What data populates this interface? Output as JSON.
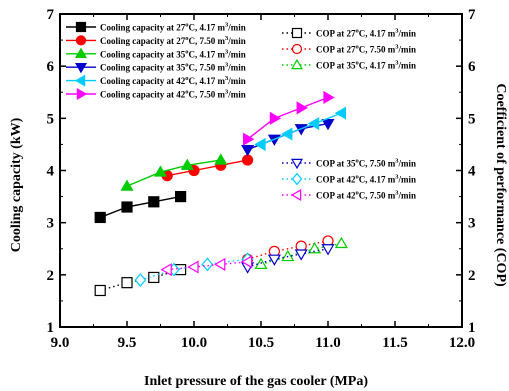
{
  "chart_data": {
    "type": "line",
    "xlabel": "Inlet pressure of the gas cooler (MPa)",
    "ylabel_left": "Cooling capacity (kW)",
    "ylabel_right": "Coefficient of performance (COP)",
    "xlim": [
      9.0,
      12.0
    ],
    "ylim": [
      1,
      7
    ],
    "xticks": [
      "9.0",
      "9.5",
      "10.0",
      "10.5",
      "11.0",
      "11.5",
      "12.0"
    ],
    "yticks": [
      "1",
      "2",
      "3",
      "4",
      "5",
      "6",
      "7"
    ],
    "grid": false,
    "series": [
      {
        "name": "Cooling capacity at 27°C, 4.17 m³/min",
        "axis": "capacity",
        "style": "solid",
        "marker": "square",
        "color": "#000000",
        "x": [
          9.3,
          9.5,
          9.7,
          9.9
        ],
        "y": [
          3.1,
          3.3,
          3.4,
          3.5
        ]
      },
      {
        "name": "Cooling capacity at 27°C, 7.50 m³/min",
        "axis": "capacity",
        "style": "solid",
        "marker": "circle",
        "color": "#ff0000",
        "x": [
          9.8,
          10.0,
          10.2,
          10.4
        ],
        "y": [
          3.9,
          4.0,
          4.1,
          4.2
        ]
      },
      {
        "name": "Cooling capacity at 35°C, 4.17 m³/min",
        "axis": "capacity",
        "style": "solid",
        "marker": "triangle-up",
        "color": "#00cc00",
        "x": [
          9.5,
          9.75,
          9.95,
          10.2
        ],
        "y": [
          3.7,
          3.97,
          4.1,
          4.2
        ]
      },
      {
        "name": "Cooling capacity at 35°C, 7.50 m³/min",
        "axis": "capacity",
        "style": "solid",
        "marker": "triangle-down",
        "color": "#0000cc",
        "x": [
          10.4,
          10.6,
          10.8,
          11.0
        ],
        "y": [
          4.4,
          4.6,
          4.8,
          4.9
        ]
      },
      {
        "name": "Cooling capacity at 42°C, 4.17 m³/min",
        "axis": "capacity",
        "style": "solid",
        "marker": "triangle-left",
        "color": "#00ccff",
        "x": [
          10.5,
          10.7,
          10.9,
          11.1
        ],
        "y": [
          4.5,
          4.7,
          4.9,
          5.1
        ]
      },
      {
        "name": "Cooling capacity at 42°C, 7.50 m³/min",
        "axis": "capacity",
        "style": "solid",
        "marker": "triangle-right",
        "color": "#ff00ff",
        "x": [
          10.4,
          10.6,
          10.8,
          11.0
        ],
        "y": [
          4.6,
          5.0,
          5.2,
          5.4
        ]
      },
      {
        "name": "COP at 27°C, 4.17 m³/min",
        "axis": "cop",
        "style": "dotted",
        "marker": "square-open",
        "color": "#000000",
        "x": [
          9.3,
          9.5,
          9.7,
          9.9
        ],
        "y": [
          1.7,
          1.85,
          1.95,
          2.1
        ]
      },
      {
        "name": "COP at 27°C, 7.50 m³/min",
        "axis": "cop",
        "style": "dotted",
        "marker": "circle-open",
        "color": "#ff0000",
        "x": [
          10.4,
          10.6,
          10.8,
          11.0
        ],
        "y": [
          2.3,
          2.45,
          2.55,
          2.65
        ]
      },
      {
        "name": "COP at 35°C, 4.17 m³/min",
        "axis": "cop",
        "style": "dotted",
        "marker": "triangle-up-open",
        "color": "#00cc00",
        "x": [
          10.5,
          10.7,
          10.9,
          11.1
        ],
        "y": [
          2.2,
          2.35,
          2.5,
          2.6
        ]
      },
      {
        "name": "COP at 35°C, 7.50 m³/min",
        "axis": "cop",
        "style": "dotted",
        "marker": "triangle-down-open",
        "color": "#0000cc",
        "x": [
          10.4,
          10.6,
          10.8,
          11.0
        ],
        "y": [
          2.15,
          2.3,
          2.4,
          2.5
        ]
      },
      {
        "name": "COP at 42°C, 4.17 m³/min",
        "axis": "cop",
        "style": "dotted",
        "marker": "diamond-open",
        "color": "#00ccff",
        "x": [
          9.6,
          9.85,
          10.1,
          10.4
        ],
        "y": [
          1.9,
          2.1,
          2.2,
          2.3
        ]
      },
      {
        "name": "COP at 42°C, 7.50 m³/min",
        "axis": "cop",
        "style": "dotted",
        "marker": "triangle-left-open",
        "color": "#ff00ff",
        "x": [
          9.8,
          10.0,
          10.2,
          10.4
        ],
        "y": [
          2.1,
          2.15,
          2.2,
          2.25
        ]
      }
    ],
    "legends": [
      {
        "position": "top-left",
        "lines": [
          {
            "series": 0,
            "parts": [
              "Cooling capacity at 27",
              "o",
              "C, 4.17 m",
              "3",
              "/min"
            ]
          },
          {
            "series": 1,
            "parts": [
              "Cooling capacity at 27",
              "o",
              "C, 7.50 m",
              "3",
              "/min"
            ]
          },
          {
            "series": 2,
            "parts": [
              "Cooling capacity at 35",
              "o",
              "C, 4.17 m",
              "3",
              "/min"
            ]
          },
          {
            "series": 3,
            "parts": [
              "Cooling capacity at 35",
              "o",
              "C, 7.50 m",
              "3",
              "/min"
            ]
          },
          {
            "series": 4,
            "parts": [
              "Cooling capacity at 42",
              "o",
              "C, 4.17 m",
              "3",
              "/min"
            ]
          },
          {
            "series": 5,
            "parts": [
              "Cooling capacity at 42",
              "o",
              "C, 7.50 m",
              "3",
              "/min"
            ]
          }
        ]
      },
      {
        "position": "top-right",
        "lines": [
          {
            "series": 6,
            "parts": [
              "COP at 27",
              "o",
              "C, 4.17 m",
              "3",
              "/min"
            ]
          },
          {
            "series": 7,
            "parts": [
              "COP at 27",
              "o",
              "C, 7.50 m",
              "3",
              "/min"
            ]
          },
          {
            "series": 8,
            "parts": [
              "COP at 35",
              "o",
              "C, 4.17 m",
              "3",
              "/min"
            ]
          }
        ]
      },
      {
        "position": "center-right",
        "lines": [
          {
            "series": 9,
            "parts": [
              "COP at 35",
              "o",
              "C, 7.50 m",
              "3",
              "/min"
            ]
          },
          {
            "series": 10,
            "parts": [
              "COP at 42",
              "o",
              "C, 4.17 m",
              "3",
              "/min"
            ]
          },
          {
            "series": 11,
            "parts": [
              "COP at 42",
              "o",
              "C, 7.50 m",
              "3",
              "/min"
            ]
          }
        ]
      }
    ]
  }
}
